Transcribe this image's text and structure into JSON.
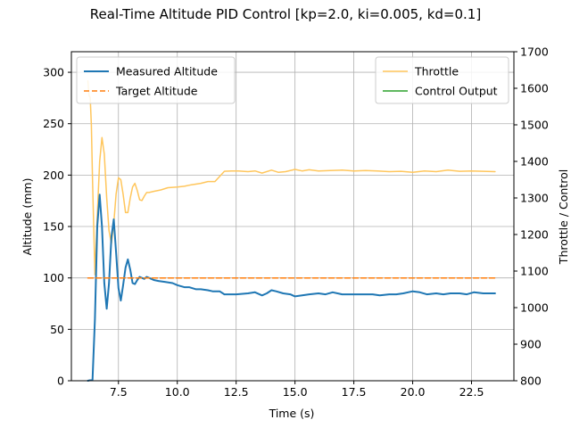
{
  "chart_data": {
    "type": "line",
    "title": "Real-Time Altitude PID Control [kp=2.0, ki=0.005, kd=0.1]",
    "xlabel": "Time (s)",
    "ylabel_left": "Altitude (mm)",
    "ylabel_right": "Throttle / Control",
    "xlim": [
      5.5,
      24.3
    ],
    "ylim_left": [
      0,
      320
    ],
    "ylim_right": [
      800,
      1700
    ],
    "x_ticks": [
      7.5,
      10.0,
      12.5,
      15.0,
      17.5,
      20.0,
      22.5
    ],
    "x_tick_labels": [
      "7.5",
      "10.0",
      "12.5",
      "15.0",
      "17.5",
      "20.0",
      "22.5"
    ],
    "y_left_ticks": [
      0,
      50,
      100,
      150,
      200,
      250,
      300
    ],
    "y_left_tick_labels": [
      "0",
      "50",
      "100",
      "150",
      "200",
      "250",
      "300"
    ],
    "y_right_ticks": [
      800,
      900,
      1000,
      1100,
      1200,
      1300,
      1400,
      1500,
      1600,
      1700
    ],
    "y_right_tick_labels": [
      "800",
      "900",
      "1000",
      "1100",
      "1200",
      "1300",
      "1400",
      "1500",
      "1600",
      "1700"
    ],
    "grid": true,
    "legend_left": {
      "placement": "upper-left",
      "entries": [
        "Measured Altitude",
        "Target Altitude"
      ]
    },
    "legend_right": {
      "placement": "upper-right",
      "entries": [
        "Throttle",
        "Control Output"
      ]
    },
    "series": [
      {
        "name": "Measured Altitude",
        "axis": "left",
        "color": "#1f77b4",
        "style": "solid",
        "x": [
          6.2,
          6.4,
          6.5,
          6.6,
          6.7,
          6.8,
          6.9,
          7.0,
          7.1,
          7.2,
          7.3,
          7.4,
          7.5,
          7.6,
          7.7,
          7.8,
          7.9,
          8.0,
          8.1,
          8.2,
          8.3,
          8.4,
          8.5,
          8.6,
          8.7,
          8.8,
          9.0,
          9.2,
          9.5,
          9.8,
          10.0,
          10.3,
          10.5,
          10.8,
          11.0,
          11.3,
          11.5,
          11.8,
          12.0,
          12.3,
          12.5,
          13.0,
          13.3,
          13.6,
          13.8,
          14.0,
          14.2,
          14.5,
          14.8,
          15.0,
          15.3,
          15.6,
          16.0,
          16.3,
          16.6,
          17.0,
          17.5,
          18.0,
          18.3,
          18.6,
          19.0,
          19.3,
          19.6,
          20.0,
          20.3,
          20.6,
          21.0,
          21.3,
          21.6,
          22.0,
          22.3,
          22.6,
          23.0,
          23.5
        ],
        "y": [
          0,
          1,
          60,
          150,
          181,
          150,
          95,
          70,
          95,
          140,
          157,
          125,
          90,
          78,
          93,
          110,
          118,
          108,
          95,
          94,
          98,
          101,
          100,
          99,
          101,
          100,
          98,
          97,
          96,
          95,
          93,
          91,
          91,
          89,
          89,
          88,
          87,
          87,
          84,
          84,
          84,
          85,
          86,
          83,
          85,
          88,
          87,
          85,
          84,
          82,
          83,
          84,
          85,
          84,
          86,
          84,
          84,
          84,
          84,
          83,
          84,
          84,
          85,
          87,
          86,
          84,
          85,
          84,
          85,
          85,
          84,
          86,
          85,
          85
        ]
      },
      {
        "name": "Target Altitude",
        "axis": "left",
        "color": "#ff7f0e",
        "style": "dashed",
        "x": [
          6.2,
          23.5
        ],
        "y": [
          100,
          100
        ]
      },
      {
        "name": "Throttle",
        "axis": "right",
        "color": "#ffc65c",
        "style": "solid",
        "x": [
          6.2,
          6.25,
          6.3,
          6.35,
          6.4,
          6.5,
          6.6,
          6.7,
          6.8,
          6.9,
          7.0,
          7.1,
          7.2,
          7.3,
          7.4,
          7.5,
          7.6,
          7.7,
          7.8,
          7.9,
          8.0,
          8.1,
          8.2,
          8.3,
          8.4,
          8.5,
          8.6,
          8.7,
          8.8,
          9.0,
          9.3,
          9.6,
          10.0,
          10.3,
          10.6,
          11.0,
          11.3,
          11.6,
          12.0,
          12.3,
          12.6,
          13.0,
          13.3,
          13.6,
          14.0,
          14.3,
          14.6,
          15.0,
          15.3,
          15.6,
          16.0,
          16.5,
          17.0,
          17.5,
          18.0,
          18.5,
          19.0,
          19.5,
          20.0,
          20.5,
          21.0,
          21.5,
          22.0,
          22.5,
          23.0,
          23.5
        ],
        "y": [
          1620,
          1580,
          1575,
          1500,
          1350,
          1090,
          1250,
          1400,
          1465,
          1420,
          1300,
          1210,
          1175,
          1230,
          1310,
          1355,
          1350,
          1310,
          1260,
          1260,
          1300,
          1330,
          1340,
          1320,
          1295,
          1293,
          1305,
          1315,
          1315,
          1318,
          1322,
          1328,
          1330,
          1332,
          1336,
          1340,
          1345,
          1345,
          1373,
          1374,
          1374,
          1372,
          1374,
          1368,
          1376,
          1370,
          1372,
          1378,
          1374,
          1377,
          1374,
          1375,
          1376,
          1374,
          1375,
          1374,
          1372,
          1373,
          1370,
          1374,
          1372,
          1376,
          1373,
          1374,
          1373,
          1372
        ]
      },
      {
        "name": "Control Output",
        "axis": "right",
        "color": "#2ca02c",
        "style": "solid",
        "x": [],
        "y": []
      }
    ]
  }
}
